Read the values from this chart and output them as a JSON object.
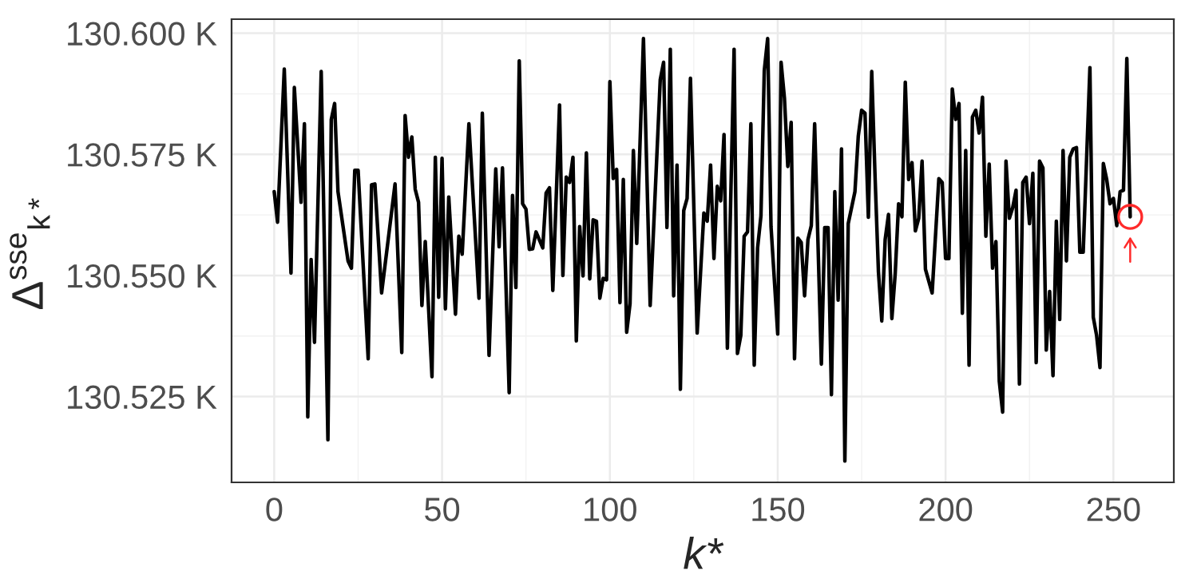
{
  "chart_data": {
    "type": "line",
    "xlabel": "k*",
    "ylabel": "Δ$^{sse}$$_{k*}$",
    "xlim": [
      -12.7,
      268
    ],
    "xticks": [
      0,
      50,
      100,
      150,
      200,
      250
    ],
    "ylim": [
      130.5073,
      130.6029
    ],
    "yticks": [
      {
        "value": 130.525,
        "label": "130.525 K"
      },
      {
        "value": 130.55,
        "label": "130.550 K"
      },
      {
        "value": 130.575,
        "label": "130.575 K"
      },
      {
        "value": 130.6,
        "label": "130.600 K"
      }
    ],
    "grid": true,
    "legend": false,
    "series": [
      {
        "color": "#000000",
        "marker": "none",
        "line_style": "solid",
        "x": [
          0,
          1,
          3,
          5,
          6,
          8,
          9,
          10,
          11,
          12,
          14,
          16,
          17,
          18,
          19,
          22,
          23,
          24,
          25,
          28,
          29,
          30,
          32,
          36,
          38,
          39,
          40,
          41,
          42,
          43,
          44,
          45,
          47,
          48,
          49,
          50,
          51,
          52,
          54,
          55,
          56,
          58,
          61,
          62,
          64,
          66,
          67,
          68,
          70,
          71,
          72,
          73,
          74,
          75,
          76,
          77,
          78,
          80,
          81,
          82,
          83,
          85,
          86,
          87,
          88,
          89,
          90,
          91,
          92,
          93,
          94,
          95,
          96,
          97,
          98,
          99,
          100,
          101,
          102,
          103,
          104,
          105,
          106,
          107,
          108,
          110,
          112,
          115,
          116,
          117,
          118,
          119,
          120,
          121,
          122,
          123,
          124,
          126,
          128,
          129,
          130,
          131,
          132,
          133,
          134,
          135,
          137,
          138,
          139,
          140,
          141,
          142,
          143,
          144,
          145,
          146,
          147,
          148,
          150,
          151,
          152,
          153,
          154,
          155,
          156,
          157,
          158,
          159,
          160,
          161,
          163,
          164,
          165,
          166,
          167,
          168,
          169,
          170,
          171,
          173,
          174,
          175,
          176,
          177,
          178,
          179,
          180,
          181,
          182,
          183,
          184,
          185,
          186,
          187,
          188,
          189,
          190,
          191,
          192,
          193,
          194,
          196,
          198,
          199,
          200,
          201,
          202,
          203,
          204,
          205,
          206,
          207,
          208,
          209,
          210,
          211,
          212,
          213,
          214,
          215,
          216,
          217,
          218,
          219,
          220,
          221,
          222,
          223,
          224,
          225,
          226,
          227,
          228,
          229,
          230,
          231,
          232,
          233,
          234,
          235,
          236,
          237,
          238,
          239,
          240,
          241,
          243,
          244,
          245,
          246,
          247,
          248,
          249,
          250,
          251,
          252,
          253,
          254,
          255
        ],
        "values": [
          130.5673,
          130.561,
          130.5926,
          130.5505,
          130.5888,
          130.5651,
          130.5813,
          130.5208,
          130.5533,
          130.5362,
          130.5921,
          130.5161,
          130.5822,
          130.5855,
          130.5673,
          130.553,
          130.5515,
          130.5717,
          130.5717,
          130.5328,
          130.5687,
          130.5689,
          130.5464,
          130.5689,
          130.5341,
          130.583,
          130.5744,
          130.5786,
          130.5678,
          130.5651,
          130.5438,
          130.557,
          130.5291,
          130.5744,
          130.5455,
          130.5742,
          130.5431,
          130.5662,
          130.542,
          130.5581,
          130.5544,
          130.5813,
          130.5453,
          130.5835,
          130.5335,
          130.572,
          130.5559,
          130.5722,
          130.5258,
          130.5665,
          130.5475,
          130.5943,
          130.5648,
          130.5637,
          130.5554,
          130.5555,
          130.559,
          130.5557,
          130.567,
          130.5681,
          130.5469,
          130.5852,
          130.55,
          130.5703,
          130.5692,
          130.5744,
          130.5365,
          130.5601,
          130.5499,
          130.5753,
          130.5493,
          130.5615,
          130.5612,
          130.5453,
          130.5494,
          130.5491,
          130.59,
          130.57,
          130.5719,
          130.5444,
          130.5698,
          130.5383,
          130.5442,
          130.5758,
          130.5566,
          130.5989,
          130.5438,
          130.5904,
          130.594,
          130.5599,
          130.5967,
          130.5458,
          130.5728,
          130.5265,
          130.5634,
          130.5659,
          130.5907,
          130.5381,
          130.5629,
          130.5612,
          130.5728,
          130.5535,
          130.5684,
          130.5654,
          130.5791,
          130.535,
          130.5967,
          130.5339,
          130.5376,
          130.5581,
          130.559,
          130.5813,
          130.5315,
          130.5557,
          130.5623,
          130.5923,
          130.5989,
          130.5601,
          130.5379,
          130.594,
          130.5866,
          130.5725,
          130.5816,
          130.5328,
          130.5577,
          130.5568,
          130.5458,
          130.5574,
          130.5603,
          130.5813,
          130.5317,
          130.5599,
          130.5599,
          130.5254,
          130.5673,
          130.5449,
          130.5761,
          130.5117,
          130.5607,
          130.5673,
          130.5788,
          130.5841,
          130.5835,
          130.562,
          130.5921,
          130.5703,
          130.5508,
          130.5406,
          130.5574,
          130.5626,
          130.5411,
          130.5504,
          130.5648,
          130.5621,
          130.5899,
          130.5698,
          130.5733,
          130.5592,
          130.5618,
          130.5736,
          130.5513,
          130.5464,
          130.57,
          130.5692,
          130.5535,
          130.5535,
          130.5885,
          130.5822,
          130.5855,
          130.5422,
          130.5758,
          130.5315,
          130.5827,
          130.5841,
          130.5794,
          130.5868,
          130.5581,
          130.573,
          130.5515,
          130.557,
          130.5282,
          130.5218,
          130.5736,
          130.5618,
          130.564,
          130.5676,
          130.5276,
          130.5692,
          130.5703,
          130.5607,
          130.5711,
          130.532,
          130.5736,
          130.5722,
          130.5346,
          130.5467,
          130.5293,
          130.5612,
          130.5409,
          130.5758,
          130.553,
          130.5744,
          130.5761,
          130.5764,
          130.5548,
          130.5548,
          130.5929,
          130.5414,
          130.5376,
          130.531,
          130.5731,
          130.5698,
          130.5648,
          130.5659,
          130.5603,
          130.5673,
          130.5676,
          130.5948,
          130.5621
        ]
      },
      {
        "type": "scatter",
        "color": "#ff2a2a",
        "marker": "circle",
        "x": [
          255
        ],
        "values": [
          130.5621
        ]
      }
    ]
  }
}
